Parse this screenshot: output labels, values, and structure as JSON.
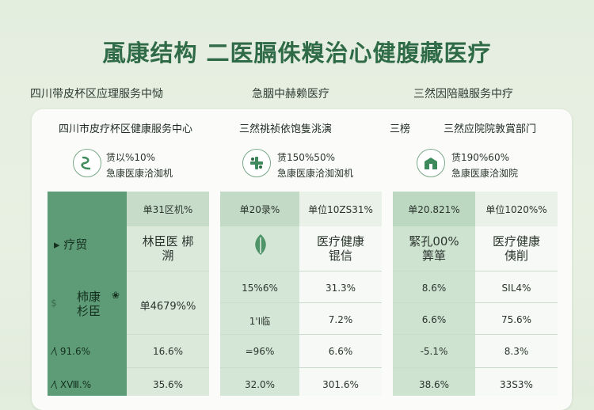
{
  "title": "颪康结构 二医膈侏糗治心健腹藏医疗",
  "subheads": [
    "四川带皮杯区应理服务中恸",
    "急胭中赫赖医疗",
    "三然因陪融服务中疗"
  ],
  "columns": [
    {
      "head": "四川市皮疗杯区健康服务中心",
      "icon": "stethoscope-icon",
      "line1": "赁以%10%",
      "line2": "急康医康洽洳机"
    },
    {
      "head": "三然祧祯依饱隻洮演",
      "icon": "leaf-medical-icon",
      "line1": "赁150%50%",
      "line2": "急康医康洽洳洳机"
    },
    {
      "head": "三榜",
      "head2": "三然应院院敦賞部门",
      "icon": "hospital-icon",
      "line1": "赁190%60%",
      "line2": "急康医康洽洳院"
    }
  ],
  "block1": {
    "header_cell": "单31区机%",
    "row1_label": "▸ 疗贸",
    "row1_value": "林臣医 梆溯",
    "row2_label": "柿康 杉臣",
    "row2_prefix": "$",
    "row2_mark": "❀",
    "row2_value": "单4679%%",
    "row3_label": "⁄\\  91.6%",
    "row3_value": "16.6%",
    "row4_label": "⁄\\  ⅩⅧ.%",
    "row4_value": "35.6%"
  },
  "block2": {
    "header_a": "单20录%",
    "header_b": "单位10ZS31%",
    "row1_b": "医疗健康 锟信",
    "rows": [
      [
        "15%6%",
        "31.3%"
      ],
      [
        "1'I临",
        "7.2%"
      ],
      [
        "=96%",
        "6.6%"
      ],
      [
        "32.0%",
        "301.6%"
      ]
    ]
  },
  "block3": {
    "header_a": "单20.821%",
    "header_b": "单位1020%%",
    "row1_a": "緊孔00% 筭箪",
    "row1_b": "医疗健康 侇削",
    "rows": [
      [
        "8.6%",
        "SIL4%"
      ],
      [
        "6.6%",
        "75.6%"
      ],
      [
        "-5.1%",
        "8.3%"
      ],
      [
        "38.6%",
        "33S3%"
      ]
    ]
  }
}
